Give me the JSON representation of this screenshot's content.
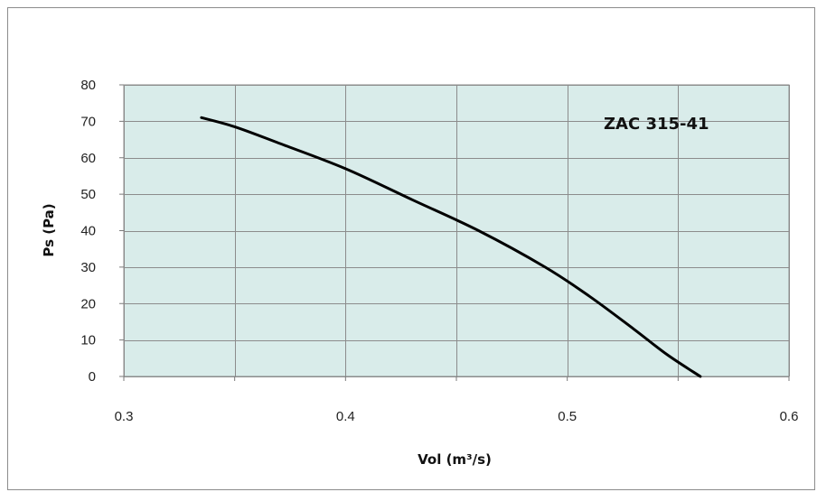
{
  "chart_data": {
    "type": "line",
    "title": "",
    "annotation": "ZAC 315-41",
    "xlabel": "Vol (m³/s)",
    "ylabel": "Ps (Pa)",
    "xlim": [
      0.3,
      0.6
    ],
    "ylim": [
      0,
      80
    ],
    "x_ticks": [
      "0.3",
      "0.35",
      "0.4",
      "0.45",
      "0.5",
      "0.55",
      "0.6"
    ],
    "x_tick_labels": [
      "0.3",
      "",
      "0.4",
      "",
      "0.5",
      "",
      "0.6"
    ],
    "y_ticks": [
      "0",
      "10",
      "20",
      "30",
      "40",
      "50",
      "60",
      "70",
      "80"
    ],
    "grid": true,
    "plot_background": "#d9ecea",
    "grid_color": "#8c8c8c",
    "series": [
      {
        "color": "#000000",
        "x": [
          0.335,
          0.35,
          0.37,
          0.4,
          0.43,
          0.46,
          0.49,
          0.51,
          0.53,
          0.545,
          0.56
        ],
        "y": [
          71,
          68.5,
          64,
          57,
          48.5,
          40,
          30,
          22,
          13,
          6,
          0
        ]
      }
    ]
  }
}
